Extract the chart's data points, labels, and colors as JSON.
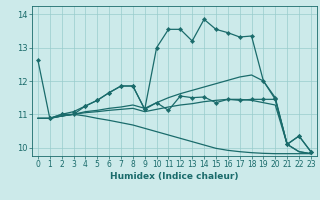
{
  "xlabel": "Humidex (Indice chaleur)",
  "bg_color": "#cceaea",
  "grid_color": "#99cccc",
  "line_color": "#1a6b6b",
  "xlim": [
    -0.5,
    23.5
  ],
  "ylim": [
    9.75,
    14.25
  ],
  "yticks": [
    10,
    11,
    12,
    13,
    14
  ],
  "xticks": [
    0,
    1,
    2,
    3,
    4,
    5,
    6,
    7,
    8,
    9,
    10,
    11,
    12,
    13,
    14,
    15,
    16,
    17,
    18,
    19,
    20,
    21,
    22,
    23
  ],
  "line1_x": [
    0,
    1,
    2,
    3,
    4,
    5,
    6,
    7,
    8,
    9,
    10,
    11,
    12,
    13,
    14,
    15,
    16,
    17,
    18,
    19,
    20,
    21,
    22,
    23
  ],
  "line1_y": [
    12.62,
    10.88,
    11.0,
    11.08,
    11.25,
    11.42,
    11.65,
    11.85,
    11.85,
    11.15,
    13.0,
    13.55,
    13.55,
    13.2,
    13.85,
    13.55,
    13.45,
    13.32,
    13.35,
    12.0,
    11.5,
    10.1,
    10.35,
    9.88
  ],
  "line2_x": [
    0,
    1,
    2,
    3,
    4,
    5,
    6,
    7,
    8,
    9,
    10,
    11,
    12,
    13,
    14,
    15,
    16,
    17,
    18,
    19,
    20,
    21,
    22,
    23
  ],
  "line2_y": [
    10.88,
    10.88,
    10.95,
    11.0,
    11.08,
    11.12,
    11.18,
    11.22,
    11.28,
    11.18,
    11.35,
    11.5,
    11.62,
    11.72,
    11.82,
    11.92,
    12.02,
    12.12,
    12.18,
    12.0,
    11.45,
    10.1,
    9.88,
    9.82
  ],
  "line3_x": [
    0,
    1,
    2,
    3,
    4,
    5,
    6,
    7,
    8,
    9,
    10,
    11,
    12,
    13,
    14,
    15,
    16,
    17,
    18,
    19,
    20,
    21,
    22,
    23
  ],
  "line3_y": [
    10.88,
    10.88,
    10.95,
    11.0,
    11.05,
    11.08,
    11.12,
    11.15,
    11.18,
    11.08,
    11.15,
    11.22,
    11.28,
    11.32,
    11.38,
    11.42,
    11.45,
    11.45,
    11.42,
    11.35,
    11.28,
    10.1,
    9.88,
    9.82
  ],
  "line4_x": [
    0,
    1,
    2,
    3,
    4,
    5,
    6,
    7,
    8,
    9,
    10,
    11,
    12,
    13,
    14,
    15,
    16,
    17,
    18,
    19,
    20,
    21,
    22,
    23
  ],
  "line4_y": [
    10.88,
    10.88,
    10.95,
    11.0,
    10.95,
    10.88,
    10.82,
    10.75,
    10.68,
    10.58,
    10.48,
    10.38,
    10.28,
    10.18,
    10.08,
    9.98,
    9.92,
    9.88,
    9.85,
    9.83,
    9.82,
    9.82,
    9.82,
    9.82
  ],
  "line5_x": [
    1,
    2,
    3,
    4,
    5,
    6,
    7,
    8,
    9,
    10,
    11,
    12,
    13,
    14,
    15,
    16,
    17,
    18,
    19,
    20,
    21,
    22,
    23
  ],
  "line5_y": [
    10.88,
    11.0,
    11.0,
    11.25,
    11.42,
    11.65,
    11.85,
    11.85,
    11.15,
    11.35,
    11.12,
    11.55,
    11.5,
    11.52,
    11.35,
    11.45,
    11.42,
    11.45,
    11.45,
    11.45,
    10.1,
    10.35,
    9.88
  ]
}
